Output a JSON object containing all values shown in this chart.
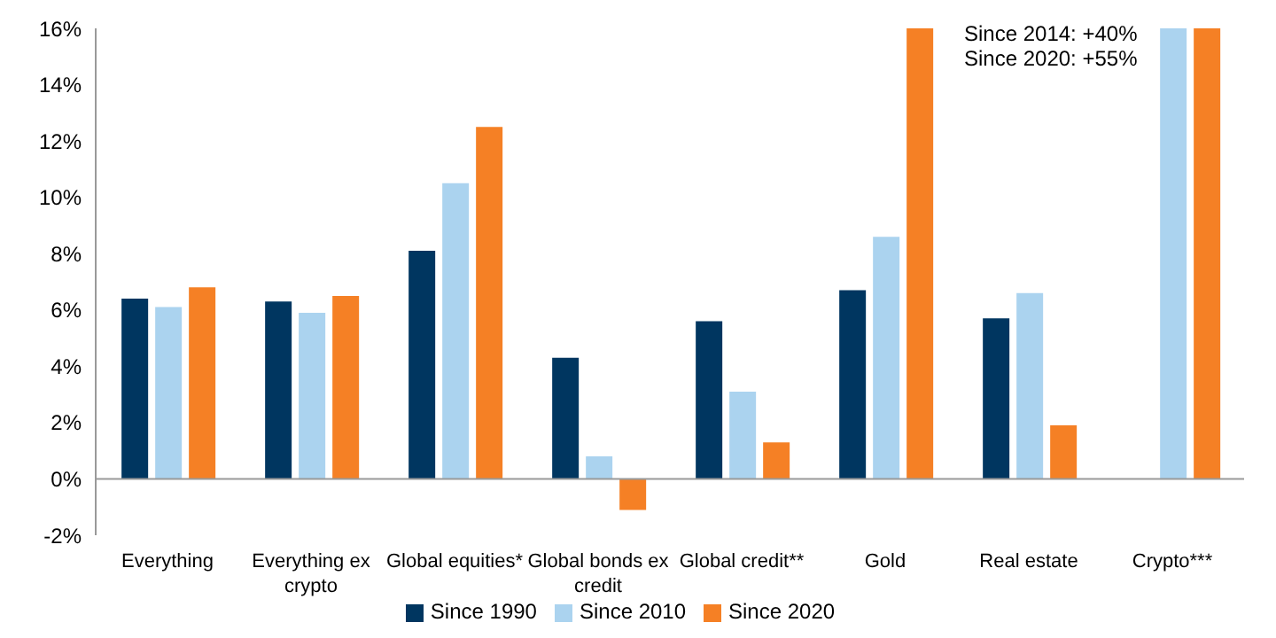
{
  "chart_data": {
    "type": "bar",
    "categories": [
      "Everything",
      "Everything ex crypto",
      "Global equities*",
      "Global bonds ex credit",
      "Global credit**",
      "Gold",
      "Real estate",
      "Crypto***"
    ],
    "series": [
      {
        "name": "Since 1990",
        "color": "#003660",
        "values": [
          6.4,
          6.3,
          8.1,
          4.3,
          5.6,
          6.7,
          5.7,
          null
        ]
      },
      {
        "name": "Since 2010",
        "color": "#abd3ef",
        "values": [
          6.1,
          5.9,
          10.5,
          0.8,
          3.1,
          8.6,
          6.6,
          16
        ]
      },
      {
        "name": "Since 2020",
        "color": "#f58025",
        "values": [
          6.8,
          6.5,
          12.5,
          -1.1,
          1.3,
          16,
          1.9,
          16
        ]
      }
    ],
    "ylim": [
      -2,
      16
    ],
    "yticks": [
      {
        "value": -2,
        "label": "-2%"
      },
      {
        "value": 0,
        "label": "0%"
      },
      {
        "value": 2,
        "label": "2%"
      },
      {
        "value": 4,
        "label": "4%"
      },
      {
        "value": 6,
        "label": "6%"
      },
      {
        "value": 8,
        "label": "8%"
      },
      {
        "value": 10,
        "label": "10%"
      },
      {
        "value": 12,
        "label": "12%"
      },
      {
        "value": 14,
        "label": "14%"
      },
      {
        "value": 16,
        "label": "16%"
      }
    ],
    "annotations": [
      "Since 2014: +40%",
      "Since 2020: +55%"
    ],
    "ref_lines": [
      {
        "axis": "y",
        "value": 0,
        "color": "#999999"
      }
    ],
    "legend": "bottom",
    "grid": false
  }
}
